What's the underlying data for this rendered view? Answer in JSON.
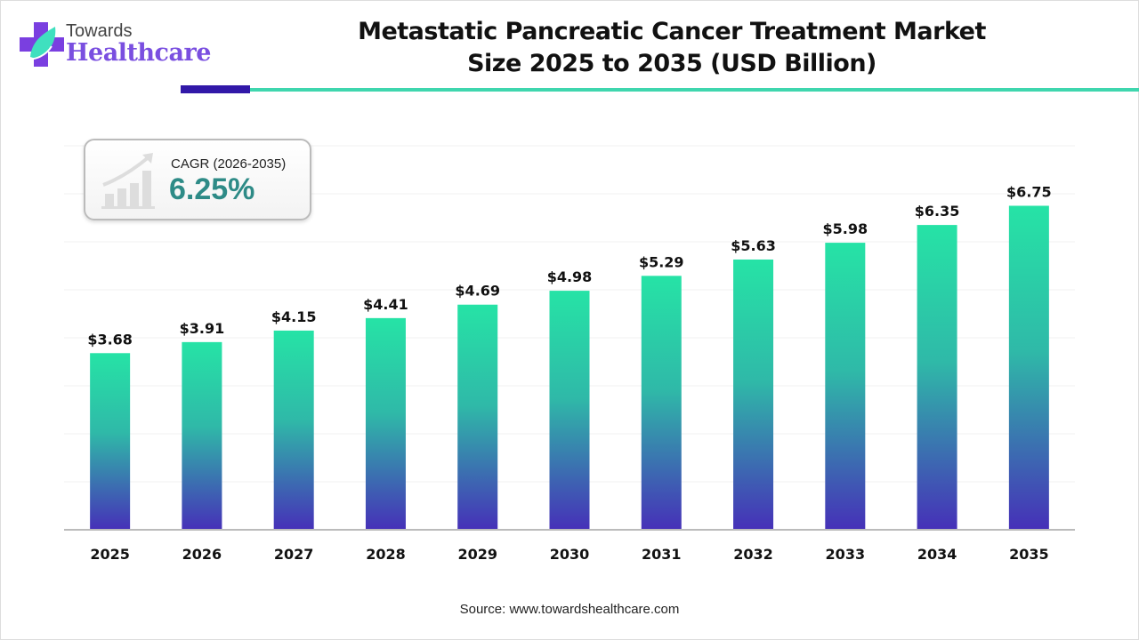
{
  "brand": {
    "line1": "Towards",
    "line2": "Healthcare",
    "colors": {
      "purple": "#7a4fe0",
      "teal": "#3fd6ae",
      "navy": "#3118a8"
    }
  },
  "cagr": {
    "label": "CAGR (2026-2035)",
    "value": "6.25%",
    "icon": "growth-chart-icon"
  },
  "source": "Source: www.towardshealthcare.com",
  "chart_data": {
    "type": "bar",
    "title": "Metastatic Pancreatic Cancer Treatment Market Size 2025 to 2035 (USD Billion)",
    "title_lines": [
      "Metastatic Pancreatic Cancer Treatment Market",
      "Size 2025 to 2035 (USD Billion)"
    ],
    "categories": [
      "2025",
      "2026",
      "2027",
      "2028",
      "2029",
      "2030",
      "2031",
      "2032",
      "2033",
      "2034",
      "2035"
    ],
    "values": [
      3.68,
      3.91,
      4.15,
      4.41,
      4.69,
      4.98,
      5.29,
      5.63,
      5.98,
      6.35,
      6.75
    ],
    "labels": [
      "$3.68",
      "$3.91",
      "$4.15",
      "$4.41",
      "$4.69",
      "$4.98",
      "$5.29",
      "$5.63",
      "$5.98",
      "$6.35",
      "$6.75"
    ],
    "xlabel": "",
    "ylabel": "",
    "ylim": [
      0,
      8
    ],
    "grid": true,
    "bar_gradient": {
      "top": "#26e3a6",
      "bottom": "#4630b8"
    }
  }
}
